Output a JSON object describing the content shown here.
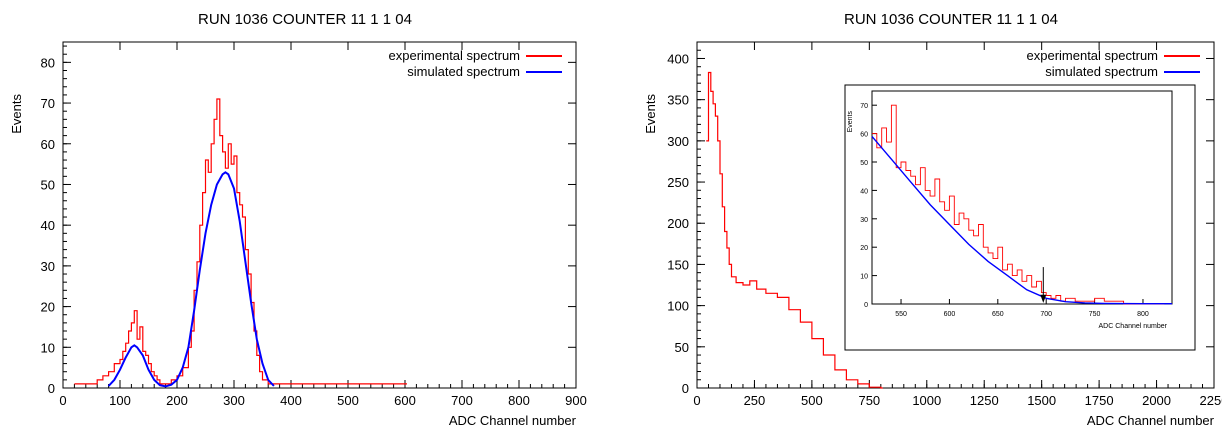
{
  "chart_data": [
    {
      "type": "line",
      "title": "RUN 1036 COUNTER 11 1 1 04",
      "xlabel": "ADC Channel number",
      "ylabel": "Events",
      "xlim": [
        0,
        900
      ],
      "ylim": [
        0,
        85
      ],
      "x_ticks": [
        0,
        100,
        200,
        300,
        400,
        500,
        600,
        700,
        800,
        900
      ],
      "y_ticks": [
        0,
        10,
        20,
        30,
        40,
        50,
        60,
        70,
        80
      ],
      "legend_position": "top-right",
      "series": [
        {
          "name": "experimental spectrum",
          "color": "#ff0000",
          "style": "histogram",
          "x": [
            20,
            40,
            60,
            70,
            80,
            90,
            100,
            105,
            110,
            115,
            120,
            125,
            130,
            135,
            140,
            145,
            150,
            155,
            160,
            165,
            170,
            180,
            190,
            200,
            210,
            220,
            225,
            230,
            235,
            240,
            245,
            250,
            255,
            260,
            265,
            270,
            275,
            280,
            285,
            290,
            295,
            300,
            305,
            310,
            315,
            320,
            325,
            330,
            335,
            340,
            345,
            350,
            360,
            380,
            400,
            450,
            500,
            550,
            600
          ],
          "values": [
            1,
            1,
            2,
            3,
            4,
            6,
            7,
            9,
            11,
            14,
            16,
            19,
            12,
            15,
            9,
            8,
            6,
            4,
            3,
            2,
            1,
            1,
            2,
            3,
            5,
            10,
            14,
            24,
            31,
            40,
            48,
            56,
            53,
            60,
            66,
            71,
            62,
            58,
            54,
            60,
            55,
            57,
            48,
            45,
            42,
            34,
            28,
            21,
            14,
            8,
            4,
            2,
            1,
            1,
            1,
            1,
            1,
            1,
            1
          ]
        },
        {
          "name": "simulated spectrum",
          "color": "#0000ff",
          "style": "line",
          "x": [
            80,
            90,
            100,
            110,
            120,
            125,
            130,
            140,
            150,
            160,
            170,
            180,
            190,
            200,
            210,
            220,
            230,
            240,
            250,
            260,
            270,
            280,
            285,
            290,
            300,
            310,
            320,
            330,
            340,
            350,
            360,
            370
          ],
          "values": [
            0.5,
            2,
            4.5,
            7.5,
            10,
            10.5,
            10,
            8,
            4.5,
            2,
            0.7,
            0.4,
            0.8,
            2,
            5,
            10,
            19,
            29,
            38,
            45,
            50,
            52.5,
            53,
            52.5,
            49,
            41,
            31,
            21,
            12,
            6,
            2,
            0.5
          ]
        }
      ]
    },
    {
      "type": "line",
      "title": "RUN 1036 COUNTER 11 1 1 04",
      "xlabel": "ADC Channel number",
      "ylabel": "Events",
      "xlim": [
        0,
        2250
      ],
      "ylim": [
        0,
        420
      ],
      "x_ticks": [
        0,
        250,
        500,
        750,
        1000,
        1250,
        1500,
        1750,
        2000,
        2250
      ],
      "y_ticks": [
        0,
        50,
        100,
        150,
        200,
        250,
        300,
        350,
        400
      ],
      "legend_position": "top-right",
      "series": [
        {
          "name": "experimental spectrum",
          "color": "#ff0000",
          "style": "histogram",
          "x": [
            40,
            50,
            60,
            70,
            80,
            90,
            100,
            110,
            120,
            130,
            140,
            150,
            170,
            200,
            230,
            260,
            300,
            350,
            400,
            450,
            500,
            550,
            600,
            650,
            700,
            750,
            800
          ],
          "values": [
            300,
            383,
            360,
            345,
            330,
            300,
            260,
            220,
            190,
            170,
            150,
            135,
            128,
            125,
            130,
            120,
            115,
            110,
            95,
            80,
            60,
            40,
            22,
            10,
            5,
            1,
            0
          ]
        }
      ],
      "inset": {
        "xlabel": "ADC Channel number",
        "ylabel": "Events",
        "xlim": [
          520,
          830
        ],
        "ylim": [
          0,
          75
        ],
        "x_ticks": [
          550,
          600,
          650,
          700,
          750,
          800
        ],
        "y_ticks": [
          0,
          10,
          20,
          30,
          40,
          50,
          60,
          70
        ],
        "marker_x": 697,
        "series": [
          {
            "name": "experimental spectrum",
            "color": "#ff0000",
            "style": "histogram",
            "x": [
              520,
              525,
              530,
              535,
              540,
              545,
              550,
              555,
              560,
              565,
              570,
              575,
              580,
              585,
              590,
              595,
              600,
              605,
              610,
              615,
              620,
              625,
              630,
              635,
              640,
              645,
              650,
              655,
              660,
              665,
              670,
              675,
              680,
              685,
              690,
              695,
              700,
              705,
              710,
              715,
              720,
              730,
              740,
              750,
              760,
              780,
              800,
              820
            ],
            "values": [
              60,
              55,
              62,
              57,
              70,
              48,
              50,
              47,
              45,
              42,
              48,
              40,
              38,
              44,
              36,
              33,
              38,
              28,
              32,
              30,
              26,
              24,
              28,
              20,
              18,
              16,
              20,
              12,
              14,
              10,
              12,
              8,
              10,
              6,
              8,
              4,
              3,
              2,
              3,
              1,
              2,
              1,
              1,
              2,
              1,
              0,
              0,
              0
            ]
          },
          {
            "name": "simulated spectrum",
            "color": "#0000ff",
            "style": "line",
            "x": [
              520,
              540,
              560,
              580,
              600,
              620,
              640,
              660,
              680,
              700,
              720,
              740,
              760,
              800,
              830
            ],
            "values": [
              59,
              51,
              43,
              35,
              28,
              21,
              15,
              10,
              5,
              2,
              0.8,
              0.4,
              0.2,
              0.1,
              0.1
            ]
          }
        ]
      }
    }
  ]
}
